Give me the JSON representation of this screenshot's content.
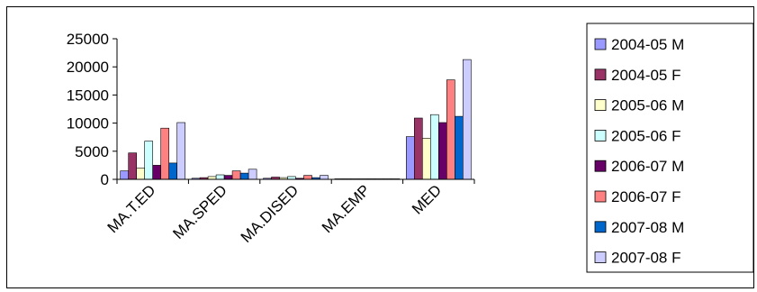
{
  "chart_data": {
    "type": "bar",
    "title": "",
    "xlabel": "",
    "ylabel": "",
    "ylim": [
      0,
      25000
    ],
    "yticks": [
      "0",
      "5000",
      "10000",
      "15000",
      "20000",
      "25000"
    ],
    "categories": [
      "MA.T.ED",
      "MA.SPED",
      "MA.DISED",
      "MA.EMP",
      "MED"
    ],
    "grid": false,
    "legend_position": "right",
    "series": [
      {
        "name": "2004-05 M",
        "color": "#9999ff",
        "values": [
          1500,
          200,
          200,
          100,
          7600
        ]
      },
      {
        "name": "2004-05 F",
        "color": "#993366",
        "values": [
          4700,
          300,
          400,
          100,
          10900
        ]
      },
      {
        "name": "2005-06 M",
        "color": "#ffffcc",
        "values": [
          2000,
          500,
          300,
          100,
          7300
        ]
      },
      {
        "name": "2005-06 F",
        "color": "#ccffff",
        "values": [
          6800,
          800,
          500,
          100,
          11500
        ]
      },
      {
        "name": "2006-07 M",
        "color": "#660066",
        "values": [
          2500,
          700,
          200,
          100,
          10100
        ]
      },
      {
        "name": "2006-07 F",
        "color": "#ff8080",
        "values": [
          9100,
          1500,
          700,
          100,
          17700
        ]
      },
      {
        "name": "2007-08 M",
        "color": "#0066cc",
        "values": [
          2900,
          1100,
          300,
          100,
          11200
        ]
      },
      {
        "name": "2007-08 F",
        "color": "#ccccff",
        "values": [
          10100,
          1800,
          700,
          100,
          21300
        ]
      }
    ]
  }
}
